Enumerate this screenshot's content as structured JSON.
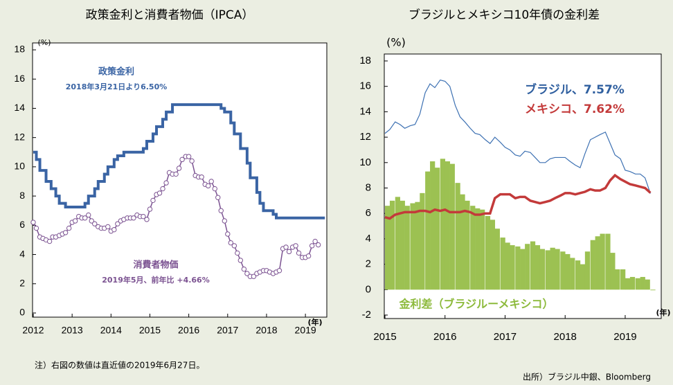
{
  "chart_data": [
    {
      "type": "line",
      "title": "政策金利と消費者物価（IPCA）",
      "y_unit": "(%)",
      "x_unit": "(年)",
      "xlim": [
        2012,
        2019.55
      ],
      "ylim": [
        0,
        18
      ],
      "xticks": [
        2012,
        2013,
        2014,
        2015,
        2016,
        2017,
        2018,
        2019
      ],
      "yticks": [
        0,
        2,
        4,
        6,
        8,
        10,
        12,
        14,
        16,
        18
      ],
      "annotations": [
        "政策金利",
        "2018年3月21日より6.50%",
        "消費者物価",
        "2019年5月、前年比 +4.66%"
      ],
      "series": [
        {
          "style": "step",
          "color": "#3a64a4",
          "x": [
            2012.0,
            2012.08,
            2012.17,
            2012.33,
            2012.46,
            2012.58,
            2012.67,
            2012.83,
            2013.33,
            2013.42,
            2013.58,
            2013.67,
            2013.83,
            2013.92,
            2014.08,
            2014.17,
            2014.33,
            2014.83,
            2014.92,
            2015.08,
            2015.17,
            2015.33,
            2015.42,
            2015.58,
            2016.83,
            2016.92,
            2017.08,
            2017.17,
            2017.33,
            2017.5,
            2017.58,
            2017.75,
            2017.83,
            2017.92,
            2018.17,
            2018.25,
            2019.5
          ],
          "values": [
            11.0,
            10.5,
            9.75,
            9.0,
            8.5,
            8.0,
            7.5,
            7.25,
            7.5,
            8.0,
            8.5,
            9.0,
            9.5,
            10.0,
            10.5,
            10.75,
            11.0,
            11.25,
            11.75,
            12.25,
            12.75,
            13.25,
            13.75,
            14.25,
            14.0,
            13.75,
            13.0,
            12.25,
            11.25,
            10.25,
            9.25,
            8.25,
            7.5,
            7.0,
            6.75,
            6.5,
            6.5
          ]
        },
        {
          "style": "markers",
          "color": "#7b5291",
          "x": [
            2012.0,
            2012.08,
            2012.17,
            2012.25,
            2012.33,
            2012.42,
            2012.5,
            2012.58,
            2012.67,
            2012.75,
            2012.83,
            2012.92,
            2013.0,
            2013.08,
            2013.17,
            2013.25,
            2013.33,
            2013.42,
            2013.5,
            2013.58,
            2013.67,
            2013.75,
            2013.83,
            2013.92,
            2014.0,
            2014.08,
            2014.17,
            2014.25,
            2014.33,
            2014.42,
            2014.5,
            2014.58,
            2014.67,
            2014.75,
            2014.83,
            2014.92,
            2015.0,
            2015.08,
            2015.17,
            2015.25,
            2015.33,
            2015.42,
            2015.5,
            2015.58,
            2015.67,
            2015.75,
            2015.83,
            2015.92,
            2016.0,
            2016.08,
            2016.17,
            2016.25,
            2016.33,
            2016.42,
            2016.5,
            2016.58,
            2016.67,
            2016.75,
            2016.83,
            2016.92,
            2017.0,
            2017.08,
            2017.17,
            2017.25,
            2017.33,
            2017.42,
            2017.5,
            2017.58,
            2017.67,
            2017.75,
            2017.83,
            2017.92,
            2018.0,
            2018.08,
            2018.17,
            2018.25,
            2018.33,
            2018.42,
            2018.5,
            2018.58,
            2018.67,
            2018.75,
            2018.83,
            2018.92,
            2019.0,
            2019.08,
            2019.17,
            2019.25,
            2019.33
          ],
          "values": [
            6.2,
            5.8,
            5.2,
            5.1,
            5.0,
            4.9,
            5.2,
            5.2,
            5.3,
            5.4,
            5.5,
            5.8,
            6.2,
            6.3,
            6.6,
            6.5,
            6.5,
            6.7,
            6.3,
            6.1,
            5.9,
            5.8,
            5.8,
            5.9,
            5.6,
            5.7,
            6.1,
            6.3,
            6.4,
            6.5,
            6.5,
            6.5,
            6.7,
            6.6,
            6.6,
            6.4,
            7.1,
            7.7,
            8.1,
            8.2,
            8.5,
            8.9,
            9.6,
            9.5,
            9.5,
            9.9,
            10.5,
            10.7,
            10.7,
            10.4,
            9.4,
            9.3,
            9.3,
            8.8,
            8.7,
            9.0,
            8.5,
            7.9,
            7.0,
            6.3,
            5.4,
            4.8,
            4.6,
            4.1,
            3.6,
            3.0,
            2.7,
            2.5,
            2.5,
            2.7,
            2.8,
            2.9,
            2.9,
            2.8,
            2.7,
            2.8,
            2.9,
            4.4,
            4.5,
            4.2,
            4.5,
            4.6,
            4.1,
            3.8,
            3.8,
            3.9,
            4.6,
            4.9,
            4.66
          ]
        }
      ]
    },
    {
      "type": "line",
      "title": "ブラジルとメキシコ10年債の金利差",
      "y_unit": "(%)",
      "x_unit": "(年)",
      "xlim": [
        2015,
        2019.6
      ],
      "ylim": [
        -2,
        18
      ],
      "xticks": [
        2015,
        2016,
        2017,
        2018,
        2019
      ],
      "yticks": [
        -2,
        0,
        2,
        4,
        6,
        8,
        10,
        12,
        14,
        16,
        18
      ],
      "annotations": [
        "ブラジル、7.57%",
        "メキシコ、7.62%",
        "金利差（ブラジルーメキシコ）"
      ],
      "x": [
        2015.0,
        2015.08,
        2015.17,
        2015.25,
        2015.33,
        2015.42,
        2015.5,
        2015.58,
        2015.67,
        2015.75,
        2015.83,
        2015.92,
        2016.0,
        2016.08,
        2016.17,
        2016.25,
        2016.33,
        2016.42,
        2016.5,
        2016.58,
        2016.67,
        2016.75,
        2016.83,
        2016.92,
        2017.0,
        2017.08,
        2017.17,
        2017.25,
        2017.33,
        2017.42,
        2017.5,
        2017.58,
        2017.67,
        2017.75,
        2017.83,
        2017.92,
        2018.0,
        2018.08,
        2018.17,
        2018.25,
        2018.33,
        2018.42,
        2018.5,
        2018.58,
        2018.67,
        2018.75,
        2018.83,
        2018.92,
        2019.0,
        2019.08,
        2019.17,
        2019.25,
        2019.33,
        2019.42
      ],
      "series": [
        {
          "style": "bar",
          "color": "#9cc152",
          "values": [
            6.6,
            7.0,
            7.3,
            7.0,
            6.6,
            6.8,
            6.9,
            7.6,
            9.3,
            10.1,
            9.6,
            10.3,
            10.1,
            9.9,
            8.4,
            7.5,
            7.0,
            6.6,
            6.4,
            6.3,
            5.8,
            5.5,
            4.8,
            4.1,
            3.7,
            3.5,
            3.4,
            3.2,
            3.6,
            3.8,
            3.5,
            3.2,
            3.1,
            3.3,
            3.2,
            3.0,
            2.8,
            2.5,
            2.3,
            2.0,
            3.0,
            3.9,
            4.2,
            4.4,
            4.4,
            2.9,
            1.6,
            1.6,
            0.9,
            1.0,
            0.9,
            1.0,
            0.8,
            -0.05
          ]
        },
        {
          "style": "thin",
          "color": "#3c70b2",
          "values": [
            12.3,
            12.6,
            13.2,
            13.0,
            12.7,
            12.9,
            13.0,
            13.8,
            15.5,
            16.2,
            15.9,
            16.5,
            16.4,
            16.0,
            14.5,
            13.6,
            13.2,
            12.7,
            12.3,
            12.2,
            11.8,
            11.5,
            12.0,
            11.6,
            11.2,
            11.0,
            10.6,
            10.5,
            10.9,
            10.8,
            10.4,
            10.0,
            10.0,
            10.3,
            10.4,
            10.4,
            10.4,
            10.1,
            9.8,
            9.6,
            10.7,
            11.8,
            12.0,
            12.2,
            12.4,
            11.5,
            10.6,
            10.3,
            9.4,
            9.3,
            9.1,
            9.1,
            8.8,
            7.57
          ]
        },
        {
          "style": "thick",
          "color": "#c33a3a",
          "values": [
            5.7,
            5.6,
            5.9,
            6.0,
            6.1,
            6.1,
            6.1,
            6.2,
            6.2,
            6.1,
            6.3,
            6.2,
            6.3,
            6.1,
            6.1,
            6.1,
            6.2,
            6.1,
            5.9,
            5.9,
            6.0,
            6.0,
            7.2,
            7.5,
            7.5,
            7.5,
            7.2,
            7.3,
            7.3,
            7.0,
            6.9,
            6.8,
            6.9,
            7.0,
            7.2,
            7.4,
            7.6,
            7.6,
            7.5,
            7.6,
            7.7,
            7.9,
            7.8,
            7.8,
            8.0,
            8.6,
            9.0,
            8.7,
            8.5,
            8.3,
            8.2,
            8.1,
            8.0,
            7.62
          ]
        }
      ]
    }
  ],
  "footnotes": [
    "注）右図の数値は直近値の2019年6月27日。",
    "出所）ブラジル中銀、Bloomberg"
  ]
}
